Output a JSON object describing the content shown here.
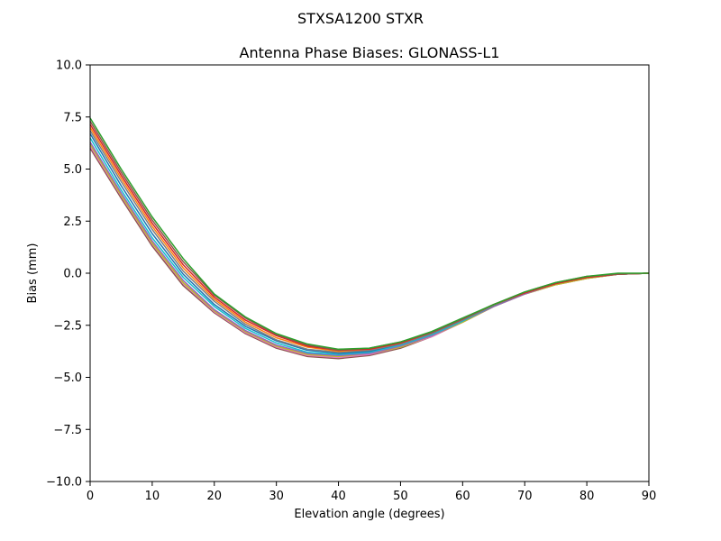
{
  "suptitle": "STXSA1200        STXR",
  "chart_data": {
    "type": "line",
    "title": "Antenna Phase Biases: GLONASS-L1",
    "xlabel": "Elevation angle (degrees)",
    "ylabel": "Bias (mm)",
    "xlim": [
      0,
      90
    ],
    "ylim": [
      -10,
      10
    ],
    "xticks": [
      0,
      10,
      20,
      30,
      40,
      50,
      60,
      70,
      80,
      90
    ],
    "yticks": [
      -10.0,
      -7.5,
      -5.0,
      -2.5,
      0.0,
      2.5,
      5.0,
      7.5,
      10.0
    ],
    "ytick_labels": [
      "−10.0",
      "−7.5",
      "−5.0",
      "−2.5",
      "0.0",
      "2.5",
      "5.0",
      "7.5",
      "10.0"
    ],
    "xtick_labels": [
      "0",
      "10",
      "20",
      "30",
      "40",
      "50",
      "60",
      "70",
      "80",
      "90"
    ],
    "grid": false,
    "legend": "none",
    "x": [
      0,
      5,
      10,
      15,
      20,
      25,
      30,
      35,
      40,
      45,
      50,
      55,
      60,
      65,
      70,
      75,
      80,
      85,
      90
    ],
    "series": [
      {
        "color": "#8c564b",
        "values": [
          6.0,
          3.6,
          1.3,
          -0.6,
          -1.9,
          -2.9,
          -3.6,
          -4.0,
          -4.1,
          -3.95,
          -3.6,
          -3.05,
          -2.35,
          -1.6,
          -1.0,
          -0.55,
          -0.25,
          -0.05,
          0.0
        ]
      },
      {
        "color": "#e377c2",
        "values": [
          6.1,
          3.7,
          1.4,
          -0.5,
          -1.85,
          -2.85,
          -3.55,
          -3.95,
          -4.05,
          -3.9,
          -3.55,
          -3.05,
          -2.35,
          -1.6,
          -1.0,
          -0.55,
          -0.25,
          -0.05,
          0.0
        ]
      },
      {
        "color": "#bcbd22",
        "values": [
          6.2,
          3.75,
          1.45,
          -0.45,
          -1.8,
          -2.8,
          -3.5,
          -3.9,
          -4.0,
          -3.85,
          -3.55,
          -3.0,
          -2.35,
          -1.6,
          -1.0,
          -0.55,
          -0.25,
          -0.05,
          0.0
        ]
      },
      {
        "color": "#9467bd",
        "values": [
          6.3,
          3.85,
          1.55,
          -0.35,
          -1.75,
          -2.75,
          -3.45,
          -3.85,
          -3.95,
          -3.85,
          -3.5,
          -3.0,
          -2.3,
          -1.6,
          -1.0,
          -0.5,
          -0.2,
          -0.05,
          0.0
        ]
      },
      {
        "color": "#17becf",
        "values": [
          6.5,
          4.0,
          1.7,
          -0.2,
          -1.6,
          -2.65,
          -3.35,
          -3.8,
          -3.9,
          -3.8,
          -3.45,
          -2.95,
          -2.3,
          -1.55,
          -0.95,
          -0.5,
          -0.2,
          -0.05,
          0.0
        ]
      },
      {
        "color": "#1f77b4",
        "values": [
          6.7,
          4.2,
          1.9,
          -0.05,
          -1.5,
          -2.55,
          -3.25,
          -3.7,
          -3.85,
          -3.75,
          -3.4,
          -2.9,
          -2.25,
          -1.55,
          -0.95,
          -0.5,
          -0.2,
          -0.05,
          0.0
        ]
      },
      {
        "color": "#7f7f7f",
        "values": [
          6.85,
          4.4,
          2.1,
          0.1,
          -1.35,
          -2.45,
          -3.2,
          -3.65,
          -3.8,
          -3.7,
          -3.4,
          -2.9,
          -2.25,
          -1.55,
          -0.95,
          -0.5,
          -0.2,
          -0.05,
          0.0
        ]
      },
      {
        "color": "#ff7f0e",
        "values": [
          7.0,
          4.55,
          2.25,
          0.25,
          -1.25,
          -2.35,
          -3.1,
          -3.55,
          -3.75,
          -3.65,
          -3.35,
          -2.85,
          -2.2,
          -1.5,
          -0.95,
          -0.5,
          -0.2,
          -0.05,
          0.0
        ]
      },
      {
        "color": "#d62728",
        "values": [
          7.15,
          4.7,
          2.4,
          0.4,
          -1.15,
          -2.25,
          -3.0,
          -3.5,
          -3.7,
          -3.65,
          -3.35,
          -2.85,
          -2.2,
          -1.5,
          -0.95,
          -0.5,
          -0.2,
          -0.05,
          0.0
        ]
      },
      {
        "color": "#8c564b",
        "values": [
          7.3,
          4.85,
          2.55,
          0.55,
          -1.05,
          -2.15,
          -2.95,
          -3.45,
          -3.7,
          -3.6,
          -3.3,
          -2.85,
          -2.2,
          -1.5,
          -0.9,
          -0.45,
          -0.15,
          -0.05,
          0.0
        ]
      },
      {
        "color": "#2ca02c",
        "values": [
          7.45,
          5.0,
          2.7,
          0.7,
          -1.0,
          -2.1,
          -2.9,
          -3.4,
          -3.65,
          -3.6,
          -3.3,
          -2.8,
          -2.15,
          -1.5,
          -0.9,
          -0.45,
          -0.15,
          0.0,
          0.0
        ]
      }
    ]
  }
}
